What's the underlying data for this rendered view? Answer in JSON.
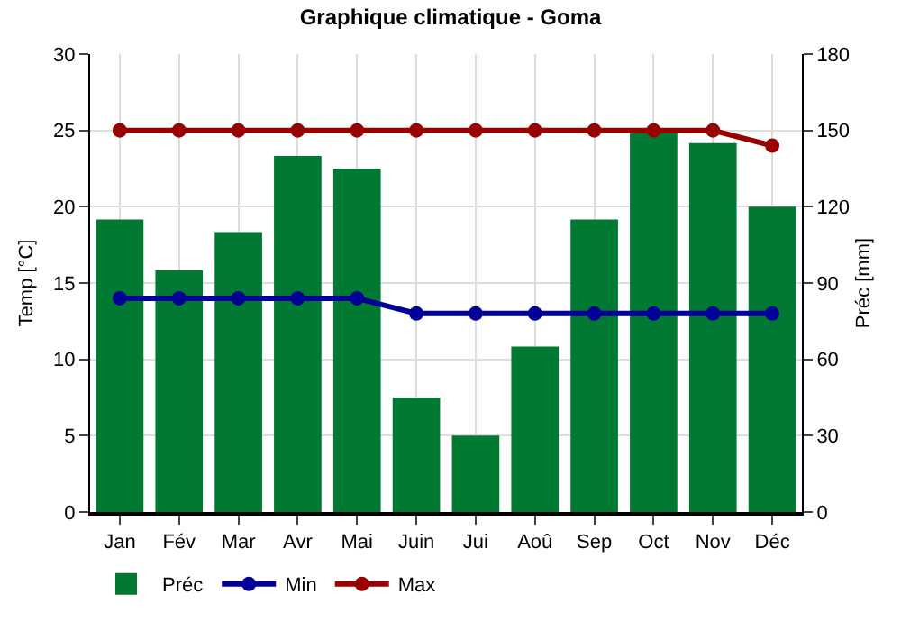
{
  "chart_data": {
    "type": "bar",
    "title": "Graphique climatique - Goma",
    "ylabel": "Temp [°C]",
    "y2label": "Préc [mm]",
    "categories": [
      "Jan",
      "Fév",
      "Mar",
      "Avr",
      "Mai",
      "Juin",
      "Jui",
      "Aoû",
      "Sep",
      "Oct",
      "Nov",
      "Déc"
    ],
    "series": [
      {
        "name": "Préc",
        "axis": "y2",
        "color": "#007a33",
        "values": [
          115,
          95,
          110,
          140,
          135,
          45,
          30,
          65,
          115,
          150,
          145,
          120
        ]
      },
      {
        "name": "Min",
        "type": "line",
        "color": "#000099",
        "values": [
          14,
          14,
          14,
          14,
          14,
          13,
          13,
          13,
          13,
          13,
          13,
          13
        ]
      },
      {
        "name": "Max",
        "type": "line",
        "color": "#990000",
        "values": [
          25,
          25,
          25,
          25,
          25,
          25,
          25,
          25,
          25,
          25,
          25,
          24
        ]
      }
    ],
    "ylim": [
      0,
      30
    ],
    "yticks": [
      0,
      5,
      10,
      15,
      20,
      25,
      30
    ],
    "y2lim": [
      0,
      180
    ],
    "y2ticks": [
      0,
      30,
      60,
      90,
      120,
      150,
      180
    ],
    "grid": true,
    "legend": "bottom left",
    "marker": "circle"
  }
}
